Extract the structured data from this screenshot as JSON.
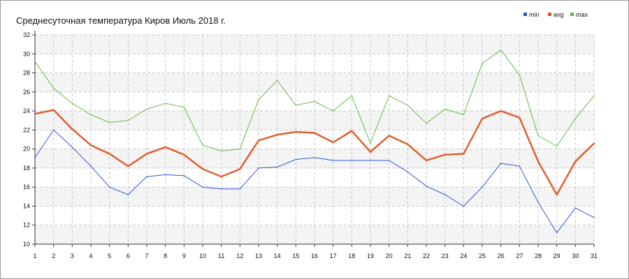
{
  "chart_data": {
    "type": "line",
    "title": "Среднесуточная температура Киров  Июль 2018 г.",
    "xlabel": "",
    "ylabel": "",
    "x": [
      1,
      2,
      3,
      4,
      5,
      6,
      7,
      8,
      9,
      10,
      11,
      12,
      13,
      14,
      15,
      16,
      17,
      18,
      19,
      20,
      21,
      22,
      23,
      24,
      25,
      26,
      27,
      28,
      29,
      30,
      31
    ],
    "xlim": [
      1,
      31
    ],
    "ylim": [
      10,
      32
    ],
    "yticks": [
      10,
      12,
      14,
      16,
      18,
      20,
      22,
      24,
      26,
      28,
      30,
      32
    ],
    "grid": true,
    "legend_position": "top-right",
    "series": [
      {
        "name": "min",
        "color": "#3355dd",
        "values": [
          19.1,
          22.0,
          20.2,
          18.2,
          16.0,
          15.2,
          17.1,
          17.3,
          17.2,
          16.0,
          15.8,
          15.8,
          18.0,
          18.1,
          18.9,
          19.1,
          18.8,
          18.8,
          18.8,
          18.8,
          17.6,
          16.1,
          15.2,
          14.0,
          16.0,
          18.5,
          18.2,
          14.4,
          11.2,
          13.8,
          12.8
        ]
      },
      {
        "name": "avg",
        "color": "#e05a28",
        "values": [
          23.7,
          24.1,
          22.1,
          20.4,
          19.5,
          18.2,
          19.5,
          20.2,
          19.4,
          17.9,
          17.1,
          17.9,
          20.9,
          21.5,
          21.8,
          21.7,
          20.7,
          21.9,
          19.7,
          21.4,
          20.5,
          18.8,
          19.4,
          19.5,
          23.2,
          24.0,
          23.3,
          18.7,
          15.2,
          18.7,
          20.6
        ]
      },
      {
        "name": "max",
        "color": "#66bb44",
        "values": [
          29.2,
          26.4,
          24.8,
          23.6,
          22.8,
          23.0,
          24.2,
          24.8,
          24.4,
          20.4,
          19.8,
          20.0,
          25.2,
          27.2,
          24.6,
          25.0,
          24.0,
          25.6,
          20.6,
          25.6,
          24.6,
          22.7,
          24.2,
          23.6,
          29.0,
          30.4,
          27.8,
          21.4,
          20.3,
          23.2,
          25.6
        ]
      }
    ]
  }
}
